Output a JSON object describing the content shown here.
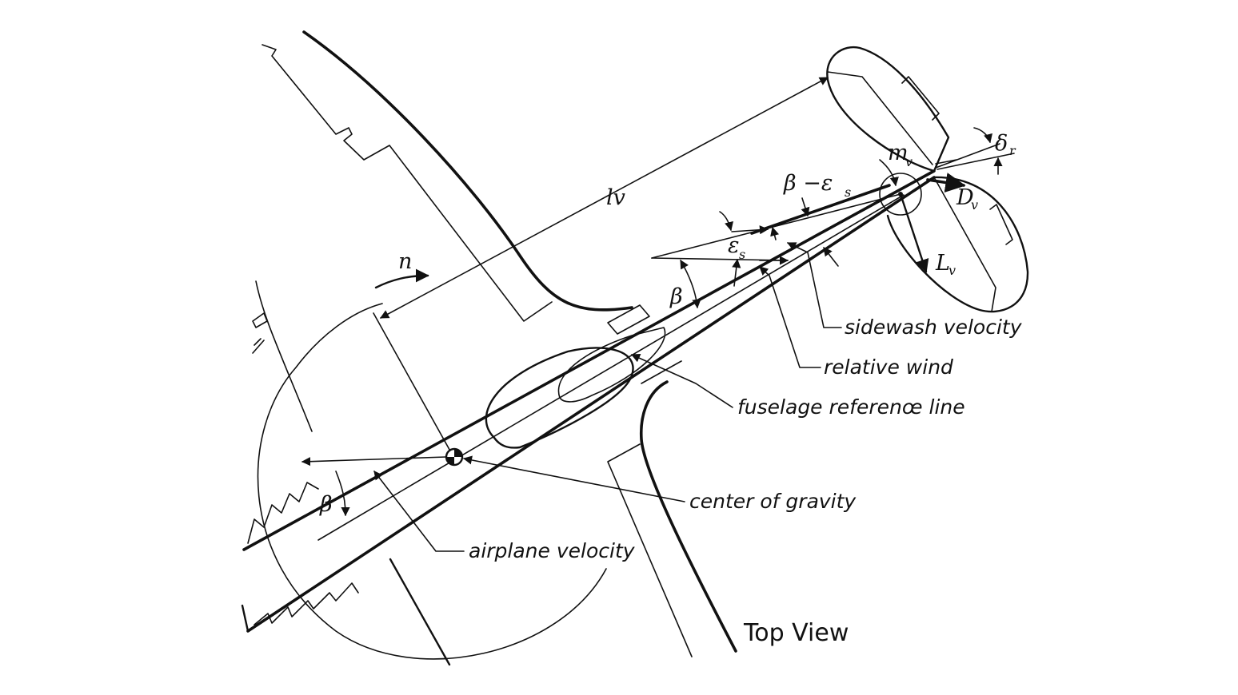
{
  "labels": {
    "sidewash_velocity": "sidewash velocity",
    "relative_wind": "relative wind",
    "fuselage_reference_line": "fuselage referenœ line",
    "center_of_gravity": "center of gravity",
    "airplane_velocity": "airplane velocity",
    "top_view": "Top View"
  },
  "symbols": {
    "n": "n",
    "lv": "lv",
    "beta_left": "β",
    "beta_center": "β",
    "beta_minus_eps": "β −ε",
    "beta_minus_eps_sub": "s",
    "eps": "ε",
    "eps_sub": "s",
    "m": "m",
    "m_sub": "v",
    "delta": "δ",
    "delta_sub": "r",
    "D": "D",
    "D_sub": "v",
    "L": "L",
    "L_sub": "v"
  }
}
